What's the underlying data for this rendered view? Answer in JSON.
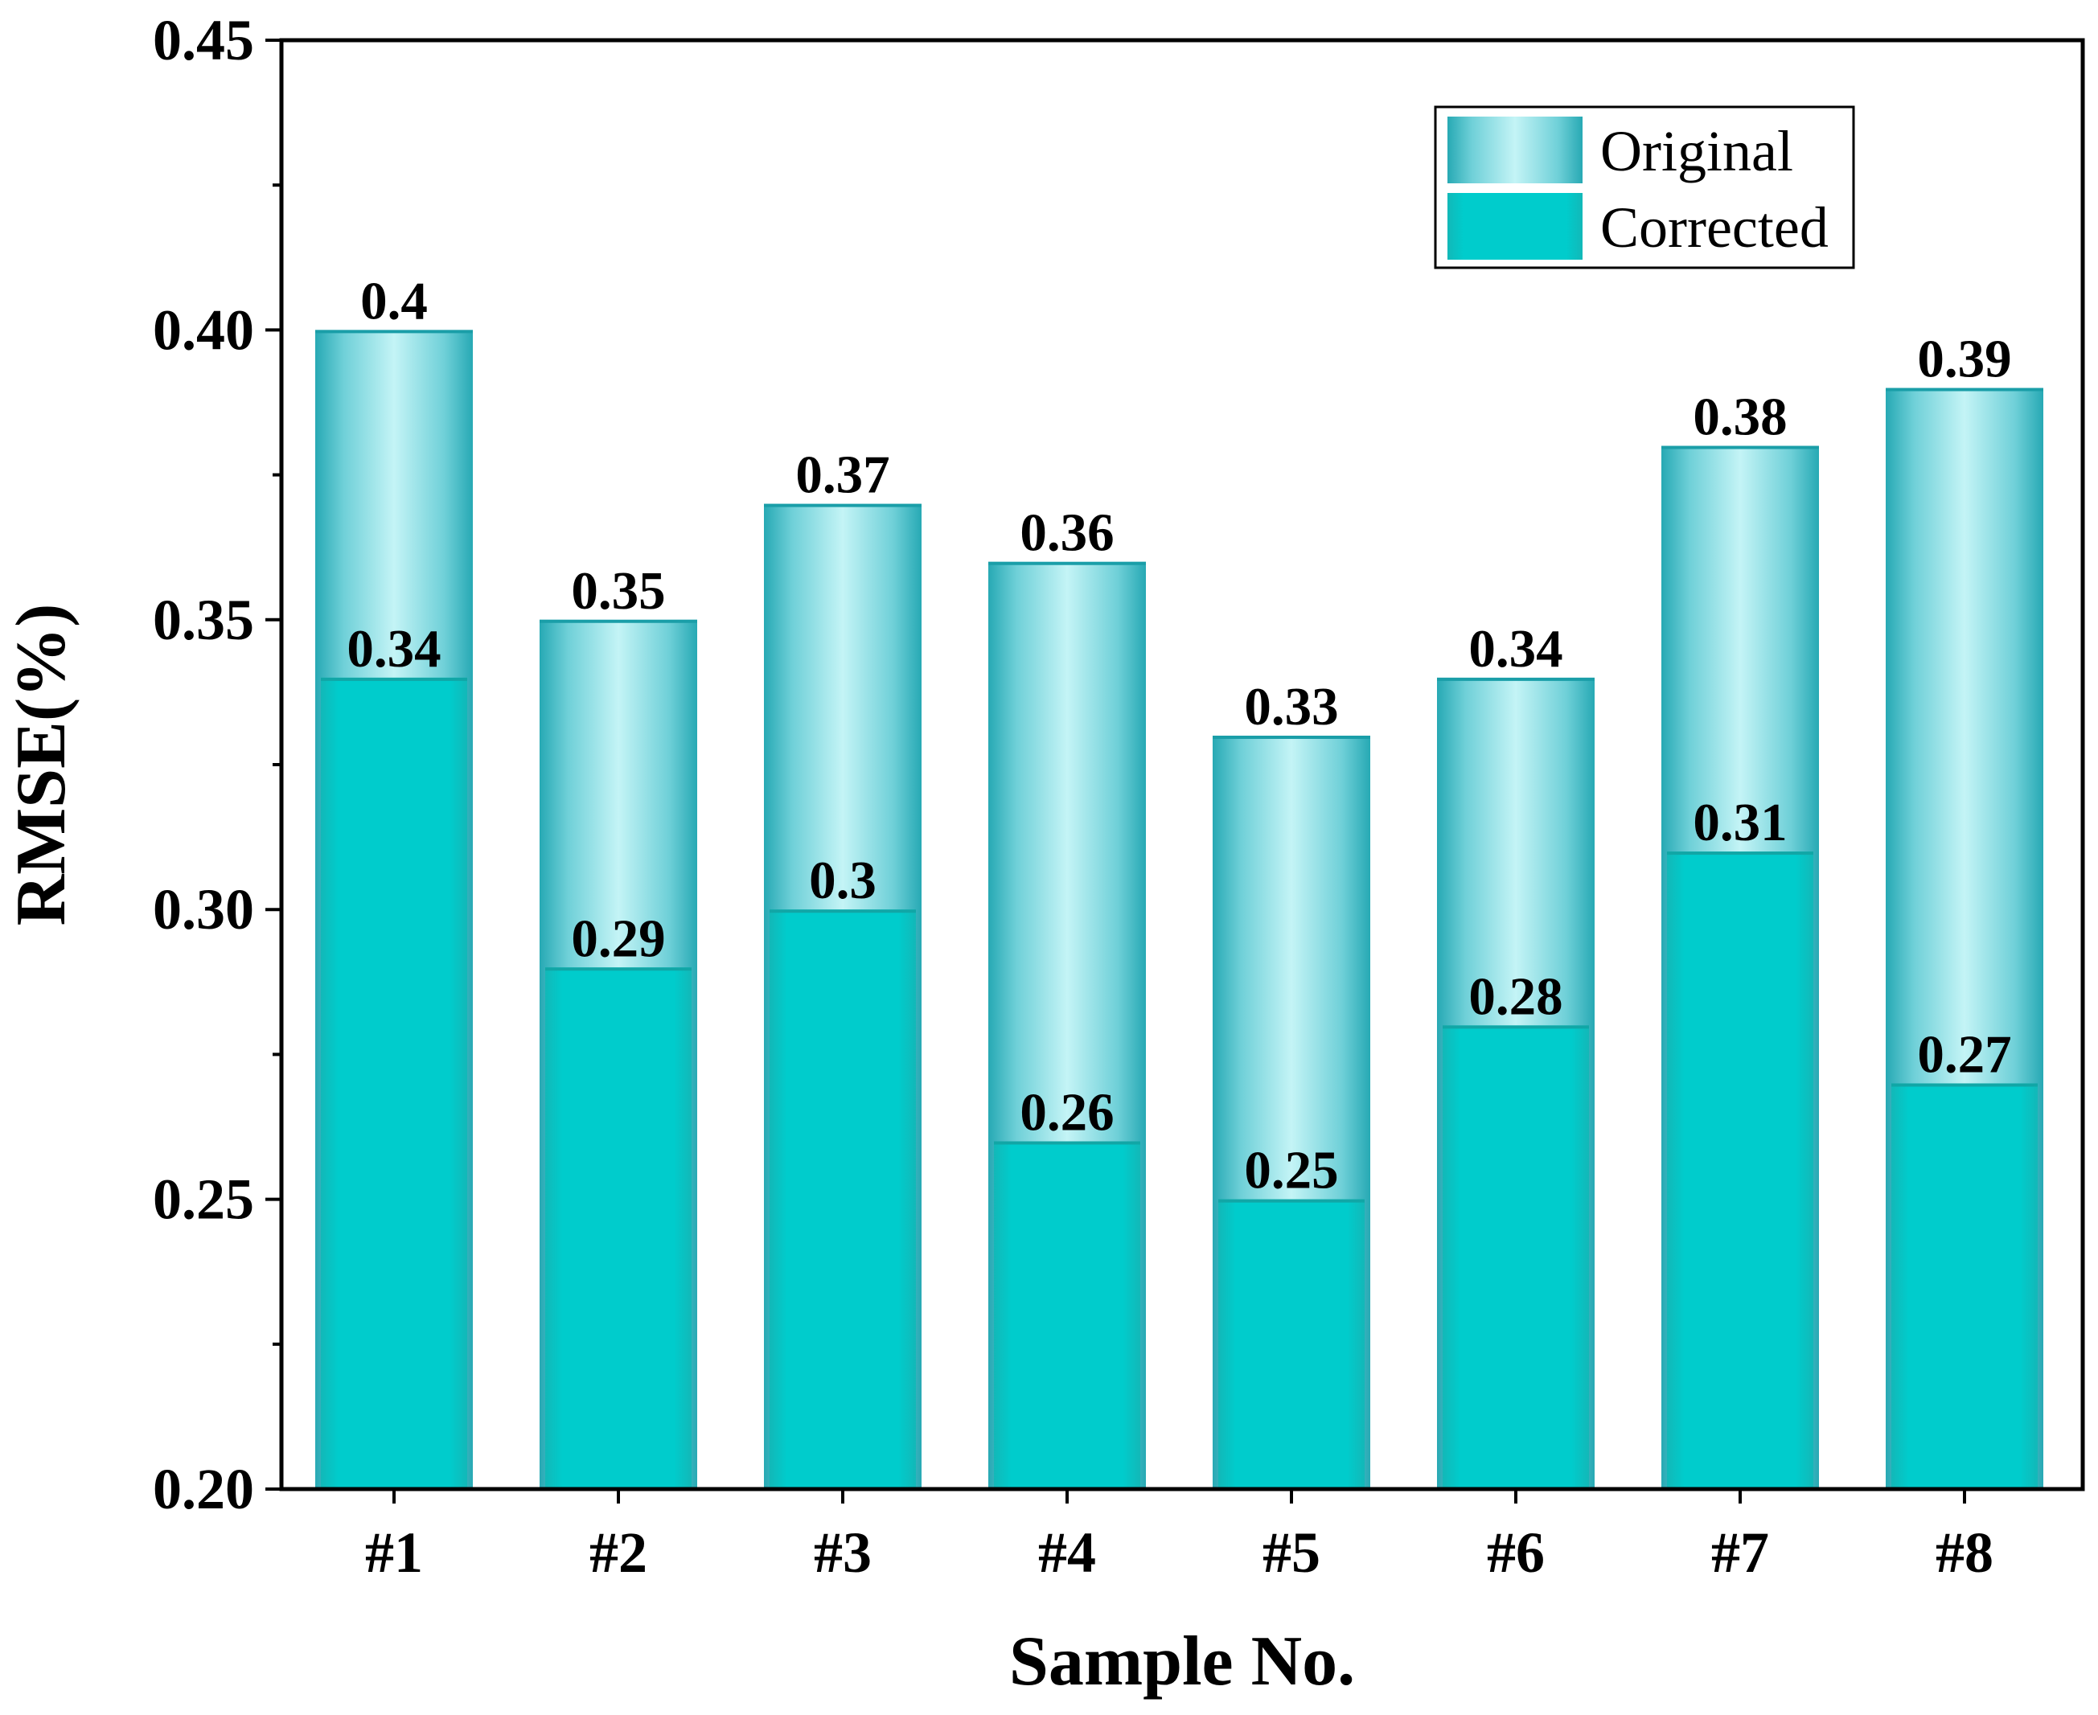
{
  "chart_data": {
    "type": "bar",
    "title": "",
    "xlabel": "Sample No.",
    "ylabel": "RMSE(%)",
    "ylim": [
      0.2,
      0.45
    ],
    "yticks": [
      "0.20",
      "0.25",
      "0.30",
      "0.35",
      "0.40",
      "0.45"
    ],
    "grid": false,
    "legend_position": "top-right",
    "categories": [
      "#1",
      "#2",
      "#3",
      "#4",
      "#5",
      "#6",
      "#7",
      "#8"
    ],
    "series": [
      {
        "name": "Original",
        "values": [
          0.4,
          0.35,
          0.37,
          0.36,
          0.33,
          0.34,
          0.38,
          0.39
        ],
        "labels": [
          "0.4",
          "0.35",
          "0.37",
          "0.36",
          "0.33",
          "0.34",
          "0.38",
          "0.39"
        ],
        "color": "#b8f0f2",
        "edge_color": "#1fa9b5"
      },
      {
        "name": "Corrected",
        "values": [
          0.34,
          0.29,
          0.3,
          0.26,
          0.25,
          0.28,
          0.31,
          0.27
        ],
        "labels": [
          "0.34",
          "0.29",
          "0.3",
          "0.26",
          "0.25",
          "0.28",
          "0.31",
          "0.27"
        ],
        "color": "#00cccc",
        "edge_color": "#14b3b3"
      }
    ]
  }
}
